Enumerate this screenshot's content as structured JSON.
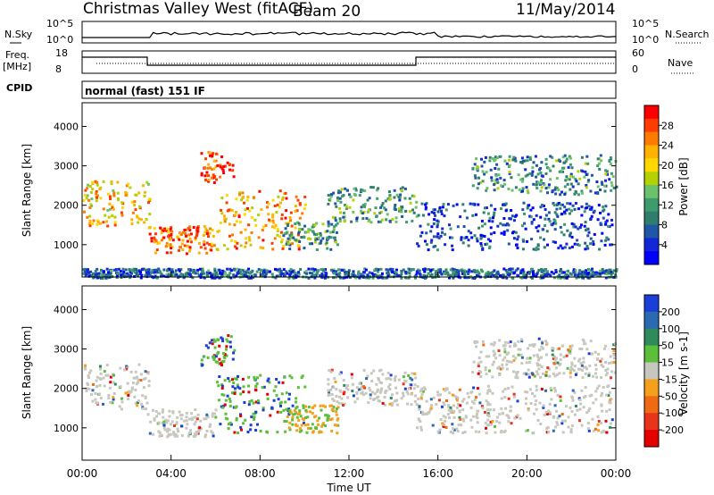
{
  "header": {
    "title": "Christmas Valley West (fitACF)",
    "beam": "Beam 20",
    "date": "11/May/2014"
  },
  "strips": {
    "nsky_label": "N.Sky",
    "nsky_ticks": [
      "10^5",
      "10^0"
    ],
    "nsearch_label": "N.Search",
    "nsearch_ticks": [
      "10^5",
      "10^0"
    ],
    "freq_label": "Freq.",
    "freq_unit": "[MHz]",
    "freq_ticks": [
      "18",
      "8"
    ],
    "nave_label": "Nave",
    "nave_ticks": [
      "60",
      "0"
    ],
    "cpid_label": "CPID",
    "cpid_value": "normal (fast) 151 IF"
  },
  "chart_data": [
    {
      "type": "heatmap",
      "name": "power",
      "ylabel": "Slant Range [km]",
      "yticks": [
        1000,
        2000,
        3000,
        4000
      ],
      "ylim": [
        180,
        4600
      ],
      "xlim_hours": [
        0,
        24
      ],
      "colorbar": {
        "label": "Power [dB]",
        "ticks": [
          "28",
          "24",
          "20",
          "16",
          "12",
          "8",
          "4"
        ],
        "colors": [
          "#ff0000",
          "#ff3d00",
          "#ff7a00",
          "#ffb300",
          "#ffd800",
          "#b5d200",
          "#6bc26b",
          "#3e9b6e",
          "#2f7d6c",
          "#1f56a6",
          "#1228d8",
          "#0000ff"
        ]
      },
      "echo_bands": [
        {
          "t0": 0,
          "t1": 3,
          "r0": 1500,
          "r1": 2650,
          "level": 0.7
        },
        {
          "t0": 2.9,
          "t1": 6,
          "r0": 800,
          "r1": 1500,
          "level": 0.85
        },
        {
          "t0": 5.3,
          "t1": 6.8,
          "r0": 2600,
          "r1": 3400,
          "level": 0.9
        },
        {
          "t0": 6,
          "t1": 10,
          "r0": 900,
          "r1": 2400,
          "level": 0.75
        },
        {
          "t0": 9,
          "t1": 11.5,
          "r0": 900,
          "r1": 1600,
          "level": 0.35
        },
        {
          "t0": 11,
          "t1": 15,
          "r0": 1600,
          "r1": 2500,
          "level": 0.35
        },
        {
          "t0": 15,
          "t1": 23.8,
          "r0": 900,
          "r1": 2100,
          "level": 0.15
        },
        {
          "t0": 17.5,
          "t1": 24,
          "r0": 2300,
          "r1": 3300,
          "level": 0.3
        },
        {
          "t0": 0,
          "t1": 24,
          "r0": 180,
          "r1": 420,
          "level": 0.2
        }
      ]
    },
    {
      "type": "heatmap",
      "name": "velocity",
      "ylabel": "Slant Range [km]",
      "xlabel": "Time UT",
      "yticks": [
        1000,
        2000,
        3000,
        4000
      ],
      "ylim": [
        180,
        4600
      ],
      "xticks": [
        "00:00",
        "04:00",
        "08:00",
        "12:00",
        "16:00",
        "20:00",
        "00:00"
      ],
      "xlim_hours": [
        0,
        24
      ],
      "colorbar": {
        "label": "Velocity [m s-1]",
        "ticks": [
          "200",
          "100",
          "50",
          "15",
          "-15",
          "-50",
          "-100",
          "-200"
        ],
        "colors": [
          "#1a3fd8",
          "#2b6ab0",
          "#2f8a5c",
          "#5bbf3a",
          "#c7c7bf",
          "#f5a01c",
          "#f06a12",
          "#e8341a",
          "#e50000"
        ]
      },
      "echo_bands": [
        {
          "t0": 0,
          "t1": 3,
          "r0": 1500,
          "r1": 2650,
          "vel": "ground"
        },
        {
          "t0": 2.9,
          "t1": 6,
          "r0": 800,
          "r1": 1500,
          "vel": "ground"
        },
        {
          "t0": 5.3,
          "t1": 6.8,
          "r0": 2600,
          "r1": 3400,
          "vel": "positive"
        },
        {
          "t0": 6,
          "t1": 10,
          "r0": 900,
          "r1": 2400,
          "vel": "positive"
        },
        {
          "t0": 9,
          "t1": 11.5,
          "r0": 900,
          "r1": 1600,
          "vel": "negative"
        },
        {
          "t0": 11,
          "t1": 15,
          "r0": 1600,
          "r1": 2500,
          "vel": "ground"
        },
        {
          "t0": 15,
          "t1": 23.8,
          "r0": 900,
          "r1": 2100,
          "vel": "ground"
        },
        {
          "t0": 17.5,
          "t1": 24,
          "r0": 2300,
          "r1": 3300,
          "vel": "ground"
        }
      ]
    }
  ]
}
